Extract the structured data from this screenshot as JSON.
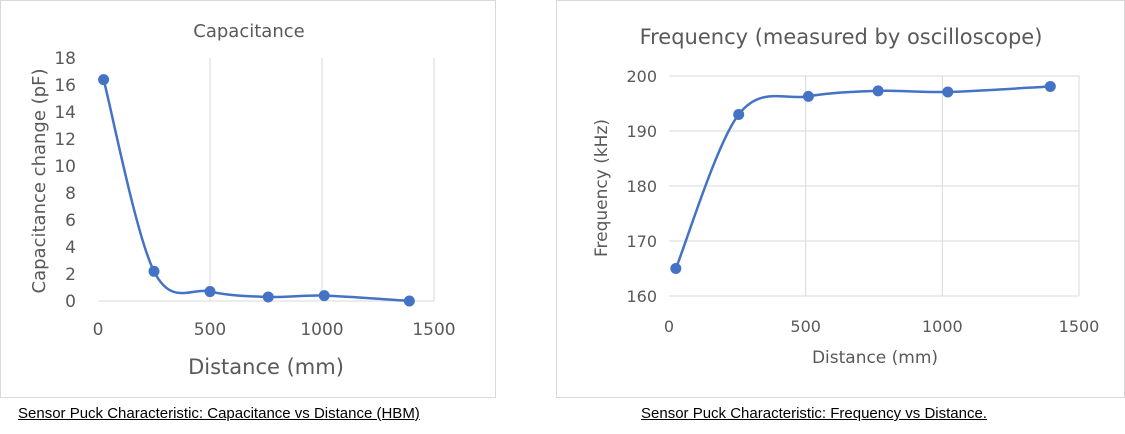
{
  "chart_data": [
    {
      "type": "line",
      "title": "Capacitance",
      "xlabel": "Distance (mm)",
      "ylabel": "Capacitance change (pF)",
      "xlim": [
        0,
        1500
      ],
      "ylim": [
        0,
        18
      ],
      "xticks": [
        "0",
        "500",
        "1000",
        "1500"
      ],
      "yticks": [
        "0",
        "2",
        "4",
        "6",
        "8",
        "10",
        "12",
        "14",
        "16",
        "18"
      ],
      "grid": "vertical",
      "legend": "none",
      "series": [
        {
          "color": "#4472c4",
          "x": [
            25,
            250,
            500,
            760,
            1010,
            1390
          ],
          "y": [
            16.4,
            2.2,
            0.7,
            0.3,
            0.4,
            0.0
          ]
        }
      ]
    },
    {
      "type": "line",
      "title": "Frequency (measured by oscilloscope)",
      "xlabel": "Distance (mm)",
      "ylabel": "Frequency (kHz)",
      "xlim": [
        0,
        1500
      ],
      "ylim": [
        160,
        200
      ],
      "xticks": [
        "0",
        "500",
        "1000",
        "1500"
      ],
      "yticks": [
        "160",
        "170",
        "180",
        "190",
        "200"
      ],
      "grid": "both",
      "legend": "none",
      "series": [
        {
          "color": "#4472c4",
          "x": [
            25,
            255,
            510,
            765,
            1020,
            1395
          ],
          "y": [
            165,
            193,
            196.3,
            197.3,
            197.1,
            198.1
          ]
        }
      ]
    }
  ],
  "captions": {
    "left": "Sensor Puck Characteristic: Capacitance vs Distance (HBM)",
    "right": "Sensor Puck Characteristic: Frequency vs Distance."
  }
}
